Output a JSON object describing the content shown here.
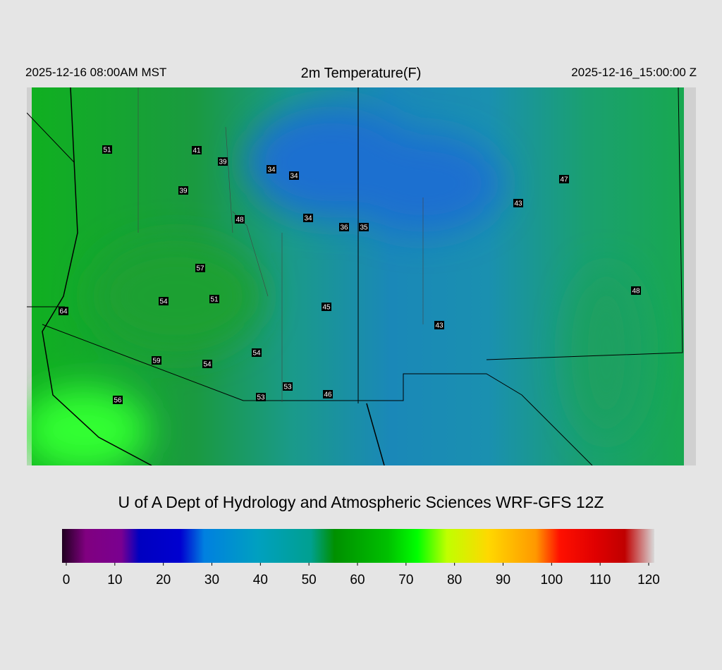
{
  "header": {
    "left": "2025-12-16 08:00AM MST",
    "title": "2m Temperature(F)",
    "right": "2025-12-16_15:00:00 Z"
  },
  "map": {
    "stations": [
      51,
      41,
      39,
      34,
      34,
      39,
      47,
      43,
      48,
      34,
      36,
      35,
      57,
      48,
      54,
      51,
      64,
      45,
      43,
      54,
      59,
      54,
      53,
      46,
      53,
      56
    ]
  },
  "footer": {
    "title": "U of A Dept of Hydrology and Atmospheric Sciences WRF-GFS 12Z"
  },
  "colorbar": {
    "ticks": [
      0,
      10,
      20,
      30,
      40,
      50,
      60,
      70,
      80,
      90,
      100,
      110,
      120
    ]
  }
}
